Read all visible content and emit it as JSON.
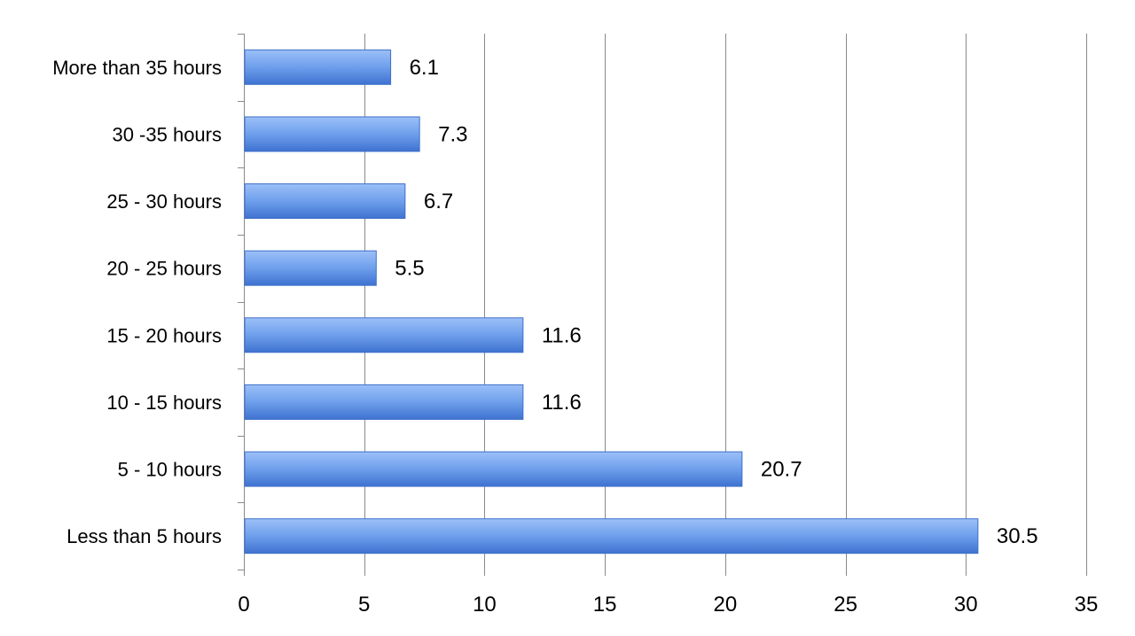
{
  "chart_data": {
    "type": "bar",
    "orientation": "horizontal",
    "categories": [
      "More than 35 hours",
      "30 -35 hours",
      "25 - 30 hours",
      "20 - 25 hours",
      "15 - 20 hours",
      "10 - 15 hours",
      "5 - 10 hours",
      "Less than 5 hours"
    ],
    "values": [
      6.1,
      7.3,
      6.7,
      5.5,
      11.6,
      11.6,
      20.7,
      30.5
    ],
    "value_labels": [
      "6.1",
      "7.3",
      "6.7",
      "5.5",
      "11.6",
      "11.6",
      "20.7",
      "30.5"
    ],
    "xlim": [
      0,
      35
    ],
    "xticks": [
      0,
      5,
      10,
      15,
      20,
      25,
      30,
      35
    ],
    "xtick_labels": [
      "0",
      "5",
      "10",
      "15",
      "20",
      "25",
      "30",
      "35"
    ],
    "grid": "vertical",
    "legend": "none",
    "title": "",
    "xlabel": "",
    "ylabel": "",
    "bar_color": "#5b8fe0"
  }
}
